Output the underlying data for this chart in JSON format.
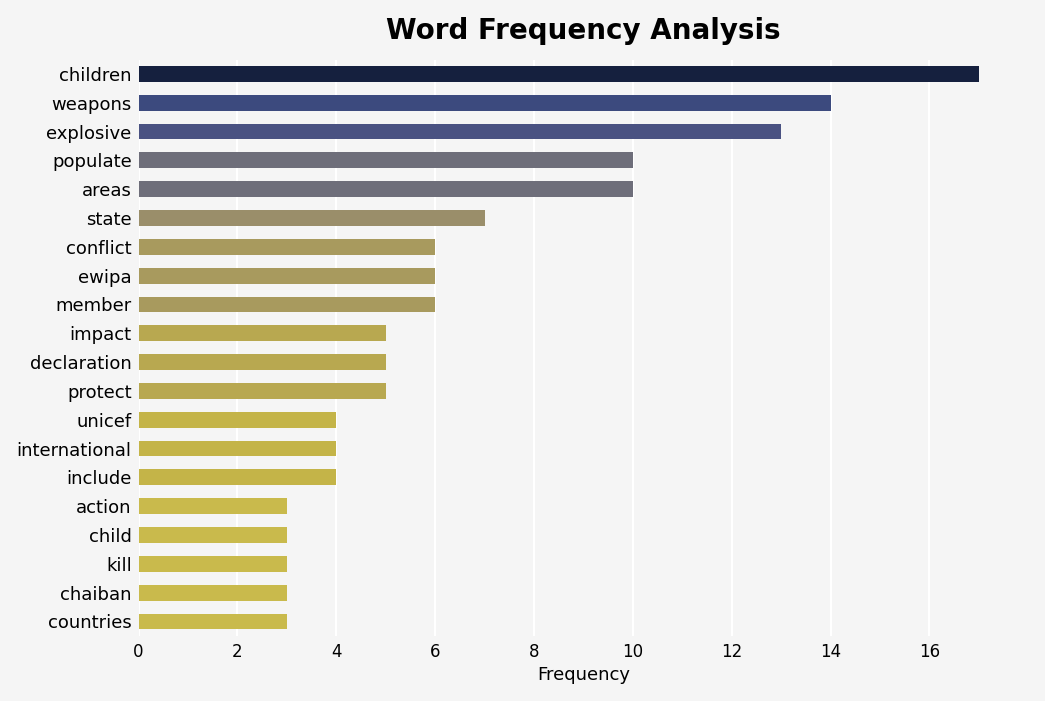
{
  "categories": [
    "countries",
    "chaiban",
    "kill",
    "child",
    "action",
    "include",
    "international",
    "unicef",
    "protect",
    "declaration",
    "impact",
    "member",
    "ewipa",
    "conflict",
    "state",
    "areas",
    "populate",
    "explosive",
    "weapons",
    "children"
  ],
  "values": [
    3,
    3,
    3,
    3,
    3,
    4,
    4,
    4,
    5,
    5,
    5,
    6,
    6,
    6,
    7,
    10,
    10,
    13,
    14,
    17
  ],
  "bar_colors": [
    "#c9ba4c",
    "#c9ba4c",
    "#c9ba4c",
    "#c9ba4c",
    "#c9ba4c",
    "#c4b448",
    "#c4b448",
    "#c4b448",
    "#b8a850",
    "#b8a850",
    "#b8a850",
    "#a89a5e",
    "#a89a5e",
    "#a89a5e",
    "#9a8e6a",
    "#6e6e7a",
    "#6e6e7a",
    "#4a5282",
    "#3c4a7e",
    "#15203e"
  ],
  "title": "Word Frequency Analysis",
  "xlabel": "Frequency",
  "ylabel": "",
  "xlim": [
    0,
    18
  ],
  "xticks": [
    0,
    2,
    4,
    6,
    8,
    10,
    12,
    14,
    16
  ],
  "background_color": "#f5f5f5",
  "plot_background_color": "#f5f5f5",
  "title_fontsize": 20,
  "label_fontsize": 13,
  "tick_fontsize": 12,
  "bar_height": 0.55
}
